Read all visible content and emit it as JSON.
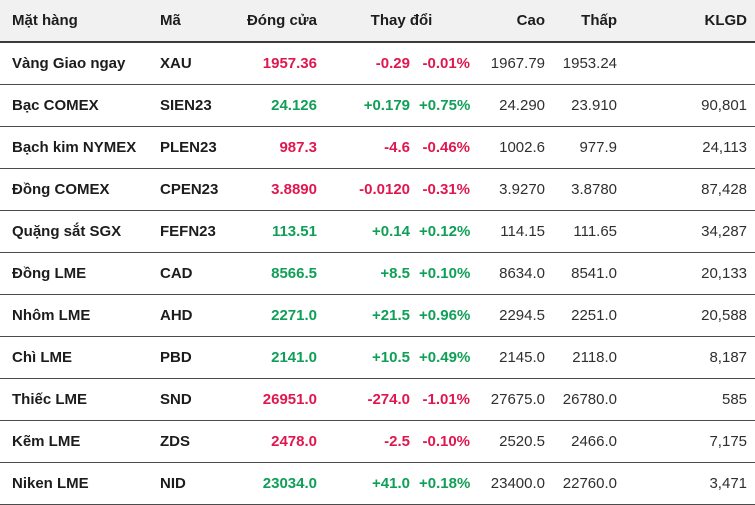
{
  "table": {
    "title": "commodity-prices",
    "headers": {
      "item": "Mặt hàng",
      "code": "Mã",
      "close": "Đóng cửa",
      "change": "Thay đổi",
      "high": "Cao",
      "low": "Thấp",
      "volume": "KLGD"
    },
    "colors": {
      "up": "#0f9f56",
      "down": "#e0174f",
      "neutral_text": "#2f2f2f",
      "header_bg": "#f1f1f1",
      "row_border": "#4c4c4c"
    },
    "rows": [
      {
        "item": "Vàng Giao ngay",
        "code": "XAU",
        "close": "1957.36",
        "change": "-0.29",
        "change_pct": "-0.01%",
        "high": "1967.79",
        "low": "1953.24",
        "volume": "",
        "trend": "down"
      },
      {
        "item": "Bạc COMEX",
        "code": "SIEN23",
        "close": "24.126",
        "change": "+0.179",
        "change_pct": "+0.75%",
        "high": "24.290",
        "low": "23.910",
        "volume": "90,801",
        "trend": "up"
      },
      {
        "item": "Bạch kim NYMEX",
        "code": "PLEN23",
        "close": "987.3",
        "change": "-4.6",
        "change_pct": "-0.46%",
        "high": "1002.6",
        "low": "977.9",
        "volume": "24,113",
        "trend": "down"
      },
      {
        "item": "Đồng COMEX",
        "code": "CPEN23",
        "close": "3.8890",
        "change": "-0.0120",
        "change_pct": "-0.31%",
        "high": "3.9270",
        "low": "3.8780",
        "volume": "87,428",
        "trend": "down"
      },
      {
        "item": "Quặng sắt SGX",
        "code": "FEFN23",
        "close": "113.51",
        "change": "+0.14",
        "change_pct": "+0.12%",
        "high": "114.15",
        "low": "111.65",
        "volume": "34,287",
        "trend": "up"
      },
      {
        "item": "Đồng LME",
        "code": "CAD",
        "close": "8566.5",
        "change": "+8.5",
        "change_pct": "+0.10%",
        "high": "8634.0",
        "low": "8541.0",
        "volume": "20,133",
        "trend": "up"
      },
      {
        "item": "Nhôm LME",
        "code": "AHD",
        "close": "2271.0",
        "change": "+21.5",
        "change_pct": "+0.96%",
        "high": "2294.5",
        "low": "2251.0",
        "volume": "20,588",
        "trend": "up"
      },
      {
        "item": "Chì LME",
        "code": "PBD",
        "close": "2141.0",
        "change": "+10.5",
        "change_pct": "+0.49%",
        "high": "2145.0",
        "low": "2118.0",
        "volume": "8,187",
        "trend": "up"
      },
      {
        "item": "Thiếc LME",
        "code": "SND",
        "close": "26951.0",
        "change": "-274.0",
        "change_pct": "-1.01%",
        "high": "27675.0",
        "low": "26780.0",
        "volume": "585",
        "trend": "down"
      },
      {
        "item": "Kẽm LME",
        "code": "ZDS",
        "close": "2478.0",
        "change": "-2.5",
        "change_pct": "-0.10%",
        "high": "2520.5",
        "low": "2466.0",
        "volume": "7,175",
        "trend": "down"
      },
      {
        "item": "Niken LME",
        "code": "NID",
        "close": "23034.0",
        "change": "+41.0",
        "change_pct": "+0.18%",
        "high": "23400.0",
        "low": "22760.0",
        "volume": "3,471",
        "trend": "up"
      }
    ]
  }
}
